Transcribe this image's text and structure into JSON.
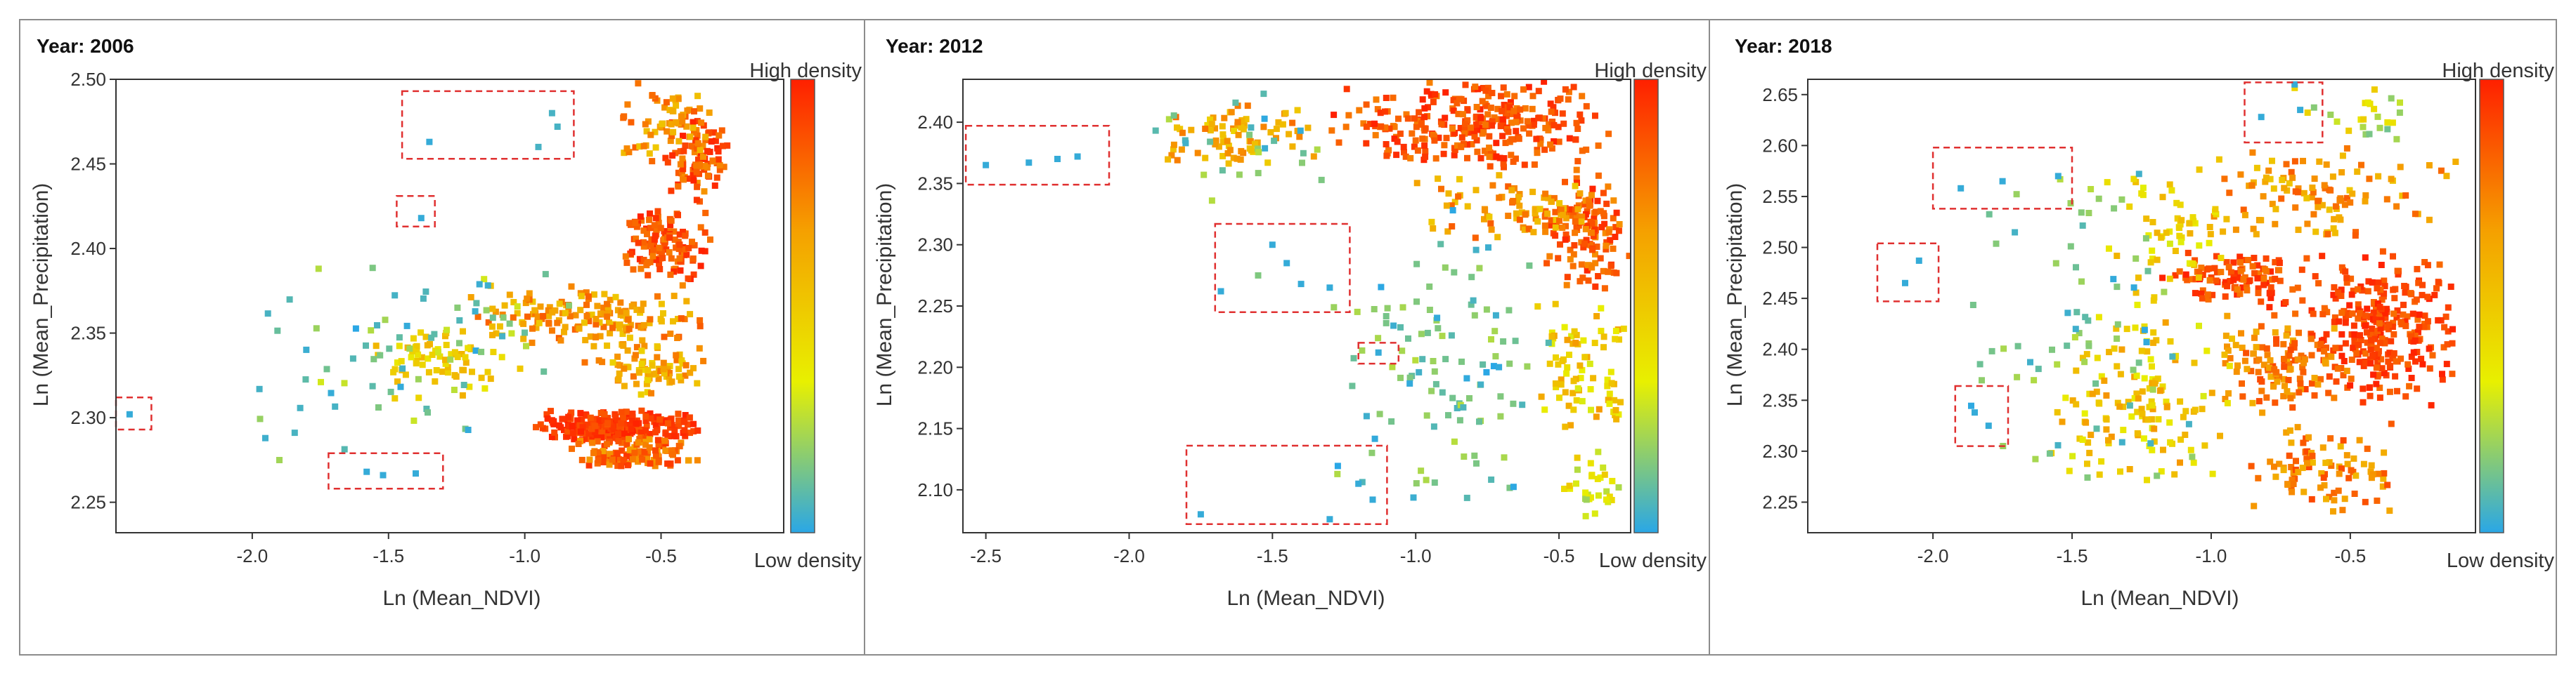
{
  "figure": {
    "colorbar": {
      "high_label": "High density",
      "low_label": "Low density",
      "colors": [
        "#2aa7e6",
        "#e8f000",
        "#f5a000",
        "#ff2000"
      ]
    },
    "border_color": "#8c8c8c",
    "outlier_box_color": "#e03030"
  },
  "chart_data": [
    {
      "type": "scatter",
      "title": "Year: 2006",
      "xlabel": "Ln (Mean_NDVI)",
      "ylabel": "Ln (Mean_Precipitation)",
      "xlim": [
        -2.5,
        -0.05
      ],
      "ylim": [
        2.232,
        2.5
      ],
      "xticks": [
        -2.0,
        -1.5,
        -1.0,
        -0.5
      ],
      "xtick_labels": [
        "-2.0",
        "-1.5",
        "-1.0",
        "-0.5"
      ],
      "yticks": [
        2.25,
        2.3,
        2.35,
        2.4,
        2.45,
        2.5
      ],
      "ytick_labels": [
        "2.25",
        "2.30",
        "2.35",
        "2.40",
        "2.45",
        "2.50"
      ],
      "outlier_boxes": [
        {
          "x": [
            -2.5,
            -2.37
          ],
          "y": [
            2.293,
            2.312
          ]
        },
        {
          "x": [
            -1.72,
            -1.3
          ],
          "y": [
            2.258,
            2.279
          ]
        },
        {
          "x": [
            -1.47,
            -1.33
          ],
          "y": [
            2.413,
            2.431
          ]
        },
        {
          "x": [
            -1.45,
            -0.82
          ],
          "y": [
            2.453,
            2.493
          ]
        }
      ],
      "clusters": [
        {
          "x": [
            -0.98,
            -0.35
          ],
          "y": [
            2.285,
            2.305
          ],
          "n": 240,
          "density": [
            0.85,
            1.0
          ]
        },
        {
          "x": [
            -0.85,
            -0.35
          ],
          "y": [
            2.268,
            2.29
          ],
          "n": 120,
          "density": [
            0.65,
            0.95
          ]
        },
        {
          "x": [
            -0.65,
            -0.3
          ],
          "y": [
            2.38,
            2.425
          ],
          "n": 130,
          "density": [
            0.75,
            1.0
          ]
        },
        {
          "x": [
            -0.5,
            -0.25
          ],
          "y": [
            2.425,
            2.48
          ],
          "n": 100,
          "density": [
            0.7,
            1.0
          ]
        },
        {
          "x": [
            -1.25,
            -0.3
          ],
          "y": [
            2.34,
            2.38
          ],
          "n": 160,
          "density": [
            0.5,
            0.85
          ]
        },
        {
          "x": [
            -0.8,
            -0.3
          ],
          "y": [
            2.31,
            2.345
          ],
          "n": 80,
          "density": [
            0.45,
            0.8
          ]
        },
        {
          "x": [
            -0.7,
            -0.3
          ],
          "y": [
            2.45,
            2.5
          ],
          "n": 60,
          "density": [
            0.5,
            0.85
          ]
        },
        {
          "x": [
            -1.6,
            -1.0
          ],
          "y": [
            2.31,
            2.36
          ],
          "n": 70,
          "density": [
            0.35,
            0.6
          ]
        },
        {
          "x": [
            -2.0,
            -0.8
          ],
          "y": [
            2.27,
            2.4
          ],
          "n": 75,
          "density": [
            0.0,
            0.3
          ]
        }
      ],
      "points": [
        {
          "x": -2.45,
          "y": 2.302,
          "density": 0.02
        },
        {
          "x": -1.58,
          "y": 2.268,
          "density": 0.02
        },
        {
          "x": -1.52,
          "y": 2.266,
          "density": 0.02
        },
        {
          "x": -1.4,
          "y": 2.267,
          "density": 0.02
        },
        {
          "x": -1.38,
          "y": 2.418,
          "density": 0.02
        },
        {
          "x": -1.35,
          "y": 2.463,
          "density": 0.02
        },
        {
          "x": -0.95,
          "y": 2.46,
          "density": 0.05
        },
        {
          "x": -0.9,
          "y": 2.48,
          "density": 0.05
        },
        {
          "x": -0.88,
          "y": 2.472,
          "density": 0.05
        }
      ]
    },
    {
      "type": "scatter",
      "title": "Year: 2012",
      "xlabel": "Ln (Mean_NDVI)",
      "ylabel": "Ln (Mean_Precipitation)",
      "xlim": [
        -2.58,
        -0.25
      ],
      "ylim": [
        2.065,
        2.435
      ],
      "xticks": [
        -2.5,
        -2.0,
        -1.5,
        -1.0,
        -0.5
      ],
      "xtick_labels": [
        "-2.5",
        "-2.0",
        "-1.5",
        "-1.0",
        "-0.5"
      ],
      "yticks": [
        2.1,
        2.15,
        2.2,
        2.25,
        2.3,
        2.35,
        2.4
      ],
      "ytick_labels": [
        "2.10",
        "2.15",
        "2.20",
        "2.25",
        "2.30",
        "2.35",
        "2.40"
      ],
      "outlier_boxes": [
        {
          "x": [
            -2.57,
            -2.07
          ],
          "y": [
            2.349,
            2.397
          ]
        },
        {
          "x": [
            -1.7,
            -1.23
          ],
          "y": [
            2.245,
            2.317
          ]
        },
        {
          "x": [
            -1.2,
            -1.06
          ],
          "y": [
            2.203,
            2.22
          ]
        },
        {
          "x": [
            -1.8,
            -1.1
          ],
          "y": [
            2.072,
            2.136
          ]
        }
      ],
      "clusters": [
        {
          "x": [
            -1.3,
            -0.3
          ],
          "y": [
            2.36,
            2.435
          ],
          "n": 300,
          "density": [
            0.75,
            1.0
          ]
        },
        {
          "x": [
            -0.55,
            -0.25
          ],
          "y": [
            2.26,
            2.36
          ],
          "n": 130,
          "density": [
            0.7,
            1.0
          ]
        },
        {
          "x": [
            -1.9,
            -1.3
          ],
          "y": [
            2.36,
            2.42
          ],
          "n": 80,
          "density": [
            0.45,
            0.8
          ]
        },
        {
          "x": [
            -1.0,
            -0.3
          ],
          "y": [
            2.3,
            2.36
          ],
          "n": 90,
          "density": [
            0.5,
            0.85
          ]
        },
        {
          "x": [
            -0.6,
            -0.26
          ],
          "y": [
            2.14,
            2.26
          ],
          "n": 80,
          "density": [
            0.3,
            0.7
          ]
        },
        {
          "x": [
            -0.5,
            -0.26
          ],
          "y": [
            2.07,
            2.14
          ],
          "n": 30,
          "density": [
            0.2,
            0.5
          ]
        },
        {
          "x": [
            -1.3,
            -0.5
          ],
          "y": [
            2.07,
            2.33
          ],
          "n": 110,
          "density": [
            0.0,
            0.25
          ]
        },
        {
          "x": [
            -2.0,
            -1.2
          ],
          "y": [
            2.33,
            2.43
          ],
          "n": 25,
          "density": [
            0.0,
            0.3
          ]
        }
      ],
      "points": [
        {
          "x": -2.5,
          "y": 2.365,
          "density": 0.02
        },
        {
          "x": -2.35,
          "y": 2.367,
          "density": 0.02
        },
        {
          "x": -2.25,
          "y": 2.37,
          "density": 0.02
        },
        {
          "x": -2.18,
          "y": 2.372,
          "density": 0.02
        },
        {
          "x": -1.68,
          "y": 2.262,
          "density": 0.02
        },
        {
          "x": -1.5,
          "y": 2.3,
          "density": 0.02
        },
        {
          "x": -1.4,
          "y": 2.268,
          "density": 0.02
        },
        {
          "x": -1.3,
          "y": 2.265,
          "density": 0.02
        },
        {
          "x": -1.55,
          "y": 2.275,
          "density": 0.15
        },
        {
          "x": -1.45,
          "y": 2.285,
          "density": 0.02
        },
        {
          "x": -1.13,
          "y": 2.212,
          "density": 0.02
        },
        {
          "x": -1.75,
          "y": 2.08,
          "density": 0.02
        },
        {
          "x": -1.2,
          "y": 2.105,
          "density": 0.02
        },
        {
          "x": -1.3,
          "y": 2.076,
          "density": 0.02
        },
        {
          "x": -1.15,
          "y": 2.092,
          "density": 0.02
        }
      ]
    },
    {
      "type": "scatter",
      "title": "Year: 2018",
      "xlabel": "Ln (Mean_NDVI)",
      "ylabel": "Ln (Mean_Precipitation)",
      "xlim": [
        -2.45,
        -0.05
      ],
      "ylim": [
        2.22,
        2.665
      ],
      "xticks": [
        -2.0,
        -1.5,
        -1.0,
        -0.5
      ],
      "xtick_labels": [
        "-2.0",
        "-1.5",
        "-1.0",
        "-0.5"
      ],
      "yticks": [
        2.25,
        2.3,
        2.35,
        2.4,
        2.45,
        2.5,
        2.55,
        2.6,
        2.65
      ],
      "ytick_labels": [
        "2.25",
        "2.30",
        "2.35",
        "2.40",
        "2.45",
        "2.50",
        "2.55",
        "2.60",
        "2.65"
      ],
      "outlier_boxes": [
        {
          "x": [
            -2.2,
            -1.98
          ],
          "y": [
            2.447,
            2.504
          ]
        },
        {
          "x": [
            -2.0,
            -1.5
          ],
          "y": [
            2.538,
            2.598
          ]
        },
        {
          "x": [
            -1.92,
            -1.73
          ],
          "y": [
            2.305,
            2.364
          ]
        },
        {
          "x": [
            -0.88,
            -0.6
          ],
          "y": [
            2.603,
            2.662
          ]
        }
      ],
      "clusters": [
        {
          "x": [
            -0.7,
            -0.1
          ],
          "y": [
            2.34,
            2.5
          ],
          "n": 300,
          "density": [
            0.8,
            1.0
          ]
        },
        {
          "x": [
            -1.2,
            -0.6
          ],
          "y": [
            2.44,
            2.5
          ],
          "n": 110,
          "density": [
            0.75,
            1.0
          ]
        },
        {
          "x": [
            -1.0,
            -0.5
          ],
          "y": [
            2.33,
            2.44
          ],
          "n": 120,
          "density": [
            0.6,
            0.9
          ]
        },
        {
          "x": [
            -1.1,
            -0.1
          ],
          "y": [
            2.5,
            2.6
          ],
          "n": 110,
          "density": [
            0.5,
            0.85
          ]
        },
        {
          "x": [
            -0.9,
            -0.3
          ],
          "y": [
            2.23,
            2.33
          ],
          "n": 90,
          "density": [
            0.55,
            0.9
          ]
        },
        {
          "x": [
            -1.6,
            -0.9
          ],
          "y": [
            2.25,
            2.45
          ],
          "n": 140,
          "density": [
            0.3,
            0.7
          ]
        },
        {
          "x": [
            -1.4,
            -0.9
          ],
          "y": [
            2.45,
            2.58
          ],
          "n": 60,
          "density": [
            0.3,
            0.6
          ]
        },
        {
          "x": [
            -1.9,
            -1.0
          ],
          "y": [
            2.25,
            2.6
          ],
          "n": 70,
          "density": [
            0.0,
            0.25
          ]
        },
        {
          "x": [
            -0.7,
            -0.15
          ],
          "y": [
            2.6,
            2.665
          ],
          "n": 25,
          "density": [
            0.1,
            0.5
          ]
        }
      ],
      "points": [
        {
          "x": -2.1,
          "y": 2.465,
          "density": 0.02
        },
        {
          "x": -2.05,
          "y": 2.487,
          "density": 0.02
        },
        {
          "x": -1.9,
          "y": 2.558,
          "density": 0.02
        },
        {
          "x": -1.75,
          "y": 2.565,
          "density": 0.02
        },
        {
          "x": -1.55,
          "y": 2.57,
          "density": 0.02
        },
        {
          "x": -1.85,
          "y": 2.338,
          "density": 0.02
        },
        {
          "x": -1.8,
          "y": 2.325,
          "density": 0.02
        },
        {
          "x": -0.82,
          "y": 2.628,
          "density": 0.02
        },
        {
          "x": -0.68,
          "y": 2.635,
          "density": 0.02
        },
        {
          "x": -0.7,
          "y": 2.66,
          "density": 0.02
        }
      ]
    }
  ]
}
